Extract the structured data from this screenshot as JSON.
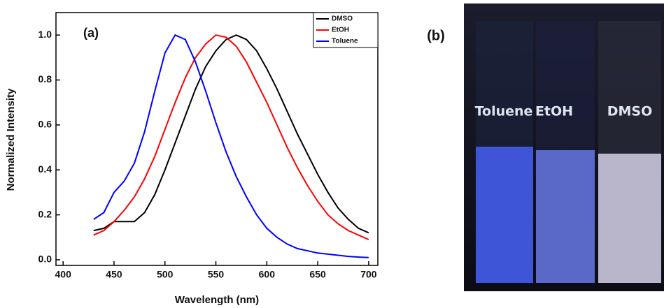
{
  "chart_data": {
    "type": "line",
    "annotation": "(a)",
    "x_label": "Wavelength (nm)",
    "y_label": "Normalized Intensity",
    "x": [
      430,
      440,
      450,
      460,
      470,
      480,
      490,
      500,
      510,
      520,
      530,
      540,
      550,
      560,
      570,
      580,
      590,
      600,
      610,
      620,
      630,
      640,
      650,
      660,
      670,
      680,
      690,
      700
    ],
    "series": [
      {
        "name": "DMSO",
        "color": "#000000",
        "values": [
          0.13,
          0.14,
          0.17,
          0.17,
          0.17,
          0.21,
          0.29,
          0.4,
          0.52,
          0.64,
          0.76,
          0.86,
          0.93,
          0.98,
          1.0,
          0.98,
          0.93,
          0.85,
          0.76,
          0.66,
          0.56,
          0.47,
          0.38,
          0.3,
          0.23,
          0.18,
          0.14,
          0.12
        ]
      },
      {
        "name": "EtOH",
        "color": "#ff0000",
        "values": [
          0.11,
          0.13,
          0.17,
          0.22,
          0.28,
          0.36,
          0.46,
          0.58,
          0.7,
          0.81,
          0.9,
          0.96,
          1.0,
          0.99,
          0.95,
          0.88,
          0.79,
          0.7,
          0.6,
          0.5,
          0.41,
          0.33,
          0.26,
          0.2,
          0.16,
          0.13,
          0.11,
          0.09
        ]
      },
      {
        "name": "Toluene",
        "color": "#0000ff",
        "values": [
          0.18,
          0.21,
          0.3,
          0.35,
          0.43,
          0.57,
          0.75,
          0.92,
          1.0,
          0.98,
          0.88,
          0.75,
          0.61,
          0.48,
          0.37,
          0.28,
          0.2,
          0.14,
          0.1,
          0.07,
          0.05,
          0.04,
          0.03,
          0.025,
          0.02,
          0.015,
          0.012,
          0.01
        ]
      }
    ],
    "xlim": [
      393,
      709
    ],
    "xticks": [
      400,
      450,
      500,
      550,
      600,
      650,
      700
    ],
    "ylim": [
      -0.025,
      1.1
    ],
    "yticks": [
      {
        "value": 0,
        "label": "0.0"
      },
      0.2,
      0.4,
      0.6,
      0.8,
      {
        "value": 1,
        "label": "1.0"
      }
    ],
    "legend": "upper right",
    "grid": false
  },
  "panel_b": {
    "label": "(b)",
    "labels": [
      "Toluene",
      "EtOH",
      "DMSO"
    ]
  }
}
